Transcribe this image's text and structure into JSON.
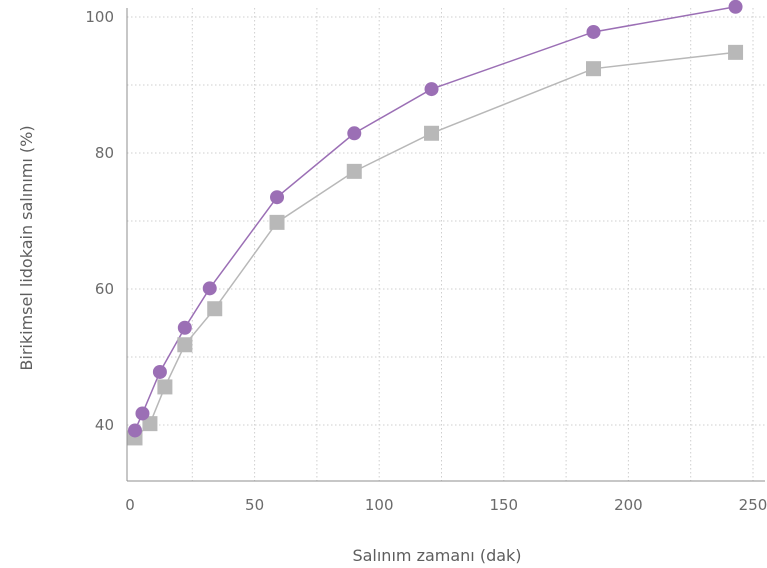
{
  "chart_data": {
    "type": "line",
    "title": "",
    "xlabel": "Salınım zamanı (dak)",
    "ylabel": "Birikimsel lidokain salınımı (%)",
    "xlim": [
      0,
      255
    ],
    "ylim": [
      33,
      101
    ],
    "xticks": [
      0,
      50,
      100,
      150,
      200,
      250
    ],
    "yticks": [
      40,
      60,
      80,
      100
    ],
    "grid": true,
    "series": [
      {
        "color": "#9b6fb5",
        "marker": "circle",
        "points": [
          {
            "x": 2,
            "y": 39.2
          },
          {
            "x": 5,
            "y": 41.7
          },
          {
            "x": 12,
            "y": 47.8
          },
          {
            "x": 22,
            "y": 54.3
          },
          {
            "x": 32,
            "y": 60.1
          },
          {
            "x": 59,
            "y": 73.5
          },
          {
            "x": 90,
            "y": 82.9
          },
          {
            "x": 121,
            "y": 89.4
          },
          {
            "x": 186,
            "y": 97.8
          },
          {
            "x": 243,
            "y": 101.5
          }
        ]
      },
      {
        "color": "#b8b8b8",
        "marker": "square",
        "points": [
          {
            "x": 2,
            "y": 38.1
          },
          {
            "x": 8,
            "y": 40.2
          },
          {
            "x": 14,
            "y": 45.6
          },
          {
            "x": 22,
            "y": 51.8
          },
          {
            "x": 34,
            "y": 57.1
          },
          {
            "x": 59,
            "y": 69.8
          },
          {
            "x": 90,
            "y": 77.3
          },
          {
            "x": 121,
            "y": 82.9
          },
          {
            "x": 186,
            "y": 92.4
          },
          {
            "x": 243,
            "y": 94.8
          }
        ]
      }
    ]
  }
}
